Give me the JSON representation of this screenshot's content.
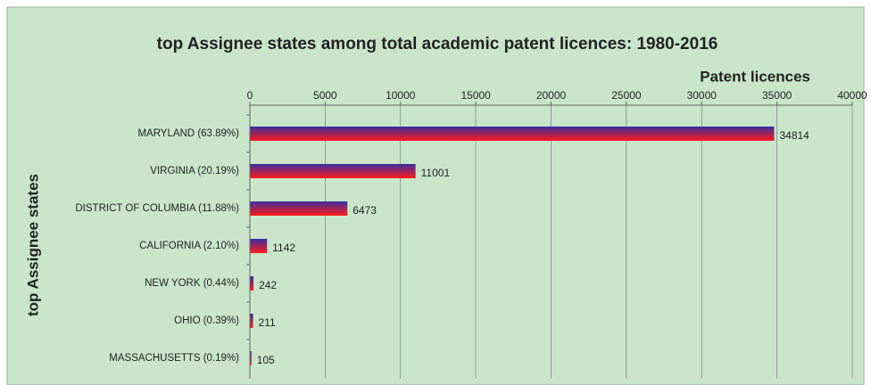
{
  "chart_data": {
    "type": "bar",
    "orientation": "horizontal",
    "title": "top Assignee states among total academic patent licences: 1980-2016",
    "x_label": "Patent licences",
    "y_label": "top Assignee states",
    "categories": [
      "MARYLAND (63.89%)",
      "VIRGINIA (20.19%)",
      "DISTRICT OF COLUMBIA (11.88%)",
      "CALIFORNIA (2.10%)",
      "NEW YORK (0.44%)",
      "OHIO (0.39%)",
      "MASSACHUSETTS (0.19%)"
    ],
    "values": [
      34814,
      11001,
      6473,
      1142,
      242,
      211,
      105
    ],
    "colors": [
      "#3b2f9e",
      "#ff1a1a"
    ],
    "xlim": [
      0,
      40000
    ],
    "xticks": [
      0,
      5000,
      10000,
      15000,
      20000,
      25000,
      30000,
      35000,
      40000
    ],
    "grid": true,
    "data_labels": true
  }
}
